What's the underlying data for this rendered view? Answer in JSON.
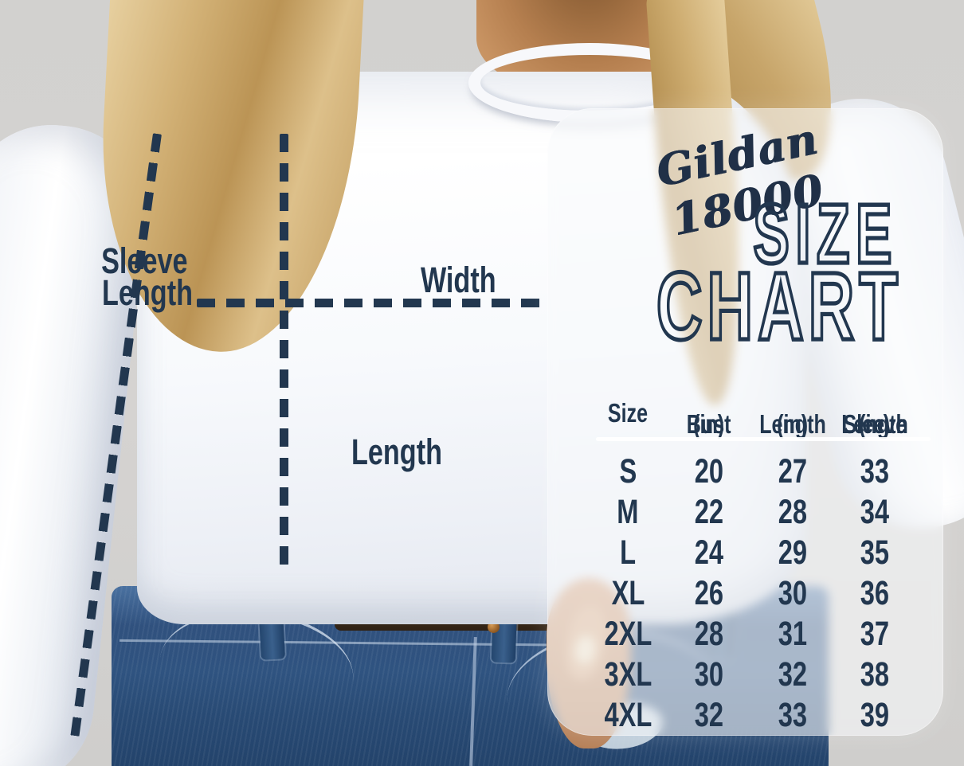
{
  "brand": {
    "script_title": "Gildan 18000"
  },
  "title": {
    "line1": "SIZE",
    "line2": "CHART"
  },
  "diagram_labels": {
    "sleeve": [
      "Sleeve",
      "Length"
    ],
    "width": "Width",
    "length": "Length"
  },
  "size_chart": {
    "header_lines": [
      [
        "Size"
      ],
      [
        "Bust",
        "(in)"
      ],
      [
        "Length",
        "(in)"
      ],
      [
        "Sleeve",
        "Length",
        "(in)"
      ]
    ]
  },
  "chart_data": {
    "type": "table",
    "title": "Gildan 18000 Size Chart",
    "columns": [
      "Size",
      "Bust (in)",
      "Length (in)",
      "Sleeve Length (in)"
    ],
    "rows": [
      [
        "S",
        "20",
        "27",
        "33"
      ],
      [
        "M",
        "22",
        "28",
        "34"
      ],
      [
        "L",
        "24",
        "29",
        "35"
      ],
      [
        "XL",
        "26",
        "30",
        "36"
      ],
      [
        "2XL",
        "28",
        "31",
        "37"
      ],
      [
        "3XL",
        "30",
        "32",
        "38"
      ],
      [
        "4XL",
        "32",
        "33",
        "39"
      ]
    ]
  },
  "colors": {
    "navy_text": "#22374f",
    "panel_white": "#f7f8fb",
    "divider_white": "#ffffff",
    "denim_blue": "#2f5380",
    "hair_blonde": "#d3b277",
    "skin_tan": "#c08a58",
    "necklace_gold": "#b9872f",
    "background_gray": "#d4d2d0",
    "sweatshirt_white": "#f7f9fc"
  }
}
